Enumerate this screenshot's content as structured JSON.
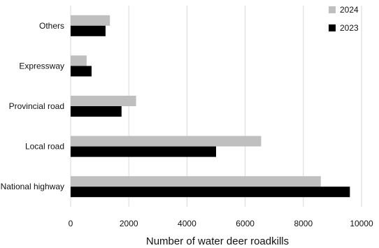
{
  "chart_data": {
    "type": "bar",
    "orientation": "horizontal",
    "categories": [
      "Others",
      "Expressway",
      "Provincial road",
      "Local road",
      "National highway"
    ],
    "series": [
      {
        "name": "2024",
        "color": "#bfbfbf",
        "values": [
          1350,
          550,
          2250,
          6550,
          8600
        ]
      },
      {
        "name": "2023",
        "color": "#000000",
        "values": [
          1200,
          720,
          1750,
          5000,
          9600
        ]
      }
    ],
    "title": "",
    "xlabel": "Number of water deer roadkills",
    "ylabel": "",
    "xlim": [
      0,
      10000
    ],
    "xticks": [
      0,
      2000,
      4000,
      6000,
      8000,
      10000
    ],
    "grid": "vertical",
    "legend_position": "top-right"
  }
}
